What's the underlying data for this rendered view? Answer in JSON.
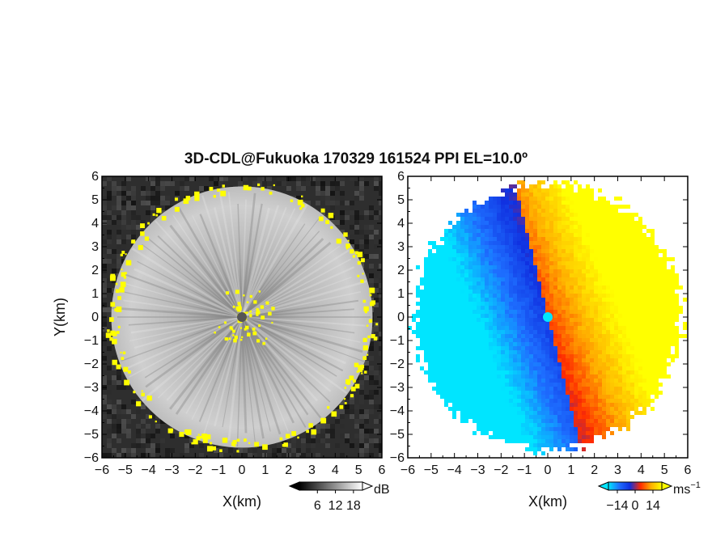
{
  "title": "3D-CDL@Fukuoka 170329 161524 PPI EL=10.0º",
  "chart_data": [
    {
      "type": "heatmap",
      "panel": "left",
      "quantity": "signal intensity",
      "xlabel": "X(km)",
      "ylabel": "Y(km)",
      "xlim": [
        -6,
        6
      ],
      "ylim": [
        -6,
        6
      ],
      "xticks": [
        -6,
        -5,
        -4,
        -3,
        -2,
        -1,
        0,
        1,
        2,
        3,
        4,
        5,
        6
      ],
      "yticks": [
        -6,
        -5,
        -4,
        -3,
        -2,
        -1,
        0,
        1,
        2,
        3,
        4,
        5,
        6
      ],
      "scan_radius_km": 5.6,
      "colorbar": {
        "label": "dB",
        "ticks": [
          6,
          12,
          18
        ],
        "range": [
          0,
          21
        ],
        "colormap": [
          "#000000",
          "#ffffff"
        ],
        "highlight_color": "#ffff00"
      }
    },
    {
      "type": "heatmap",
      "panel": "right",
      "quantity": "radial velocity",
      "xlabel": "X(km)",
      "ylabel": "",
      "xlim": [
        -6,
        6
      ],
      "ylim": [
        -6,
        6
      ],
      "xticks": [
        -6,
        -5,
        -4,
        -3,
        -2,
        -1,
        0,
        1,
        2,
        3,
        4,
        5,
        6
      ],
      "yticks": [
        -6,
        -5,
        -4,
        -3,
        -2,
        -1,
        0,
        1,
        2,
        3,
        4,
        5,
        6
      ],
      "colorbar": {
        "label": "ms",
        "label_exponent": "−1",
        "ticks": [
          "−14",
          "0",
          "14"
        ],
        "tick_values": [
          -14,
          0,
          14
        ],
        "range": [
          -21,
          21
        ],
        "colormap": [
          "#00e5ff",
          "#1e6fff",
          "#1030e0",
          "#ff2a00",
          "#ffb000",
          "#ffff00"
        ]
      }
    }
  ]
}
